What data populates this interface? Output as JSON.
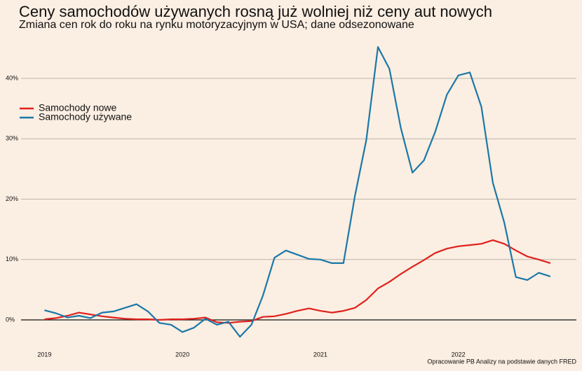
{
  "chart_data": {
    "type": "line",
    "title": "Ceny samochodów używanych rosną już wolniej niż ceny aut nowych",
    "subtitle": "Zmiana cen rok do roku na rynku motoryzacyjnym w USA; dane odsezonowane",
    "source": "Opracowanie PB Analizy na podstawie danych FRED",
    "x": [
      2019,
      2019.083,
      2019.167,
      2019.25,
      2019.333,
      2019.417,
      2019.5,
      2019.583,
      2019.667,
      2019.75,
      2019.833,
      2019.917,
      2020,
      2020.083,
      2020.167,
      2020.25,
      2020.333,
      2020.417,
      2020.5,
      2020.583,
      2020.667,
      2020.75,
      2020.833,
      2020.917,
      2021,
      2021.083,
      2021.167,
      2021.25,
      2021.333,
      2021.417,
      2021.5,
      2021.583,
      2021.667,
      2021.75,
      2021.833,
      2021.917,
      2022,
      2022.083,
      2022.167,
      2022.25,
      2022.333,
      2022.417,
      2022.5,
      2022.583,
      2022.667
    ],
    "series": [
      {
        "name": "Samochody nowe",
        "color": "#e0201c",
        "values": [
          0.1,
          0.3,
          0.7,
          1.2,
          0.9,
          0.6,
          0.4,
          0.2,
          0.1,
          0.1,
          0,
          0.1,
          0.1,
          0.2,
          0.4,
          -0.4,
          -0.5,
          -0.3,
          -0.2,
          0.5,
          0.6,
          1.0,
          1.5,
          1.9,
          1.5,
          1.2,
          1.5,
          2.0,
          3.3,
          5.2,
          6.3,
          7.6,
          8.8,
          9.9,
          11.1,
          11.8,
          12.2,
          12.4,
          12.6,
          13.2,
          12.6,
          11.5,
          10.5,
          10.0,
          9.4
        ]
      },
      {
        "name": "Samochody używane",
        "color": "#1a78a8",
        "values": [
          1.6,
          1.1,
          0.4,
          0.7,
          0.3,
          1.2,
          1.4,
          2.0,
          2.6,
          1.4,
          -0.5,
          -0.8,
          -2.0,
          -1.3,
          0.2,
          -0.8,
          -0.3,
          -2.8,
          -0.8,
          4.0,
          10.3,
          11.5,
          10.8,
          10.1,
          10.0,
          9.4,
          9.4,
          20.5,
          29.8,
          45.2,
          41.6,
          31.8,
          24.4,
          26.4,
          31.2,
          37.3,
          40.5,
          41.0,
          35.3,
          22.7,
          16.1,
          7.1,
          6.6,
          7.8,
          7.2
        ]
      }
    ],
    "xlim": [
      2018.83,
      2022.82
    ],
    "xticks": [
      2019,
      2020,
      2021,
      2022
    ],
    "ylim": [
      -4,
      46
    ],
    "yticks": [
      {
        "value": 0,
        "label": "0%"
      },
      {
        "value": 10,
        "label": "10%"
      },
      {
        "value": 20,
        "label": "20%"
      },
      {
        "value": 30,
        "label": "30%"
      },
      {
        "value": 40,
        "label": "40%"
      }
    ],
    "grid": true,
    "legend": "upper left"
  }
}
